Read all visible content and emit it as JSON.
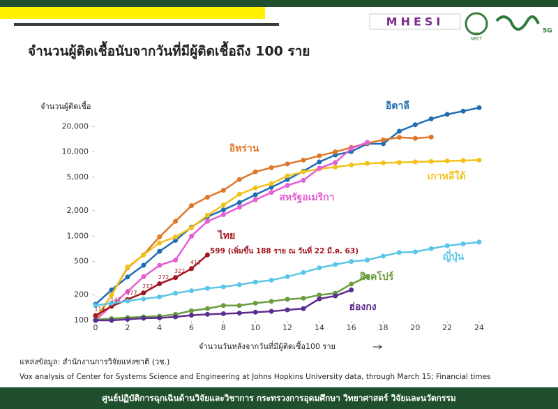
{
  "header": {
    "logo_text": "MHESI",
    "logo2_text": "วช.",
    "logo2_sub": "NRCT",
    "logo3_sub": "5G"
  },
  "chart_data": {
    "type": "line",
    "title": "จำนวนผู้ติดเชื้อนับจากวันที่มีผู้ติดเชื้อถึง 100 ราย",
    "y_label": "จำนวนผู้ติดเชื้อ",
    "x_label": "จำนวนวันหลังจากวันที่มีผู้ติดเชื้อ100 ราย",
    "log_y": true,
    "grid": false,
    "x": [
      0,
      1,
      2,
      3,
      4,
      5,
      6,
      7,
      8,
      9,
      10,
      11,
      12,
      13,
      14,
      15,
      16,
      17,
      18,
      19,
      20,
      21,
      22,
      23,
      24
    ],
    "xlim": [
      0,
      24
    ],
    "xticks": [
      0,
      2,
      4,
      6,
      8,
      10,
      12,
      14,
      16,
      18,
      20,
      22,
      24
    ],
    "ylim": [
      100,
      40000
    ],
    "yticks": [
      100,
      200,
      500,
      {
        "value": 1000,
        "label": "1,000"
      },
      {
        "value": 2000,
        "label": "2,000"
      },
      {
        "value": 5000,
        "label": "5,000"
      },
      {
        "value": 10000,
        "label": "10,000"
      },
      {
        "value": 20000,
        "label": "20,000"
      }
    ],
    "series": [
      {
        "name": "อิตาลี",
        "color": "#1f6db3",
        "values": [
          155,
          230,
          327,
          450,
          660,
          890,
          1280,
          1700,
          2050,
          2500,
          3100,
          3800,
          4700,
          5900,
          7600,
          9200,
          10100,
          12500,
          12500,
          17600,
          21000,
          24700,
          27900,
          30500,
          33500
        ]
      },
      {
        "name": "อิหร่าน",
        "color": "#e0782a",
        "values": [
          100,
          200,
          420,
          600,
          980,
          1500,
          2300,
          2900,
          3500,
          4700,
          5800,
          6500,
          7200,
          8000,
          9000,
          10000,
          11300,
          12700,
          13900,
          14900,
          14500,
          15000,
          null,
          null,
          null
        ]
      },
      {
        "name": "เกาหลีใต้",
        "color": "#f2c21b",
        "values": [
          104,
          200,
          430,
          600,
          830,
          980,
          1260,
          1770,
          2340,
          3150,
          3740,
          4200,
          5200,
          5800,
          6300,
          6600,
          7000,
          7300,
          7400,
          7500,
          7600,
          7700,
          7800,
          7900,
          8000
        ]
      },
      {
        "name": "สหรัฐอเมริกา",
        "color": "#e35fd3",
        "values": [
          100,
          150,
          220,
          330,
          450,
          520,
          1000,
          1500,
          1800,
          2200,
          2700,
          3300,
          4000,
          4600,
          6400,
          7500,
          11000,
          13000,
          null,
          null,
          null,
          null,
          null,
          null,
          null
        ]
      },
      {
        "name": "ไทย",
        "color": "#a3151f",
        "values": [
          114,
          147,
          177,
          212,
          272,
          322,
          411,
          599,
          null,
          null,
          null,
          null,
          null,
          null,
          null,
          null,
          null,
          null,
          null,
          null,
          null,
          null,
          null,
          null,
          null
        ]
      },
      {
        "name": "ญี่ปุ่น",
        "color": "#5cc6e6",
        "values": [
          150,
          160,
          170,
          180,
          190,
          210,
          225,
          240,
          250,
          265,
          285,
          300,
          330,
          370,
          420,
          460,
          500,
          520,
          580,
          640,
          650,
          710,
          770,
          810,
          850
        ]
      },
      {
        "name": "สิงคโปร์",
        "color": "#6a9e3f",
        "values": [
          102,
          105,
          108,
          110,
          112,
          118,
          130,
          138,
          150,
          150,
          160,
          168,
          178,
          183,
          200,
          210,
          270,
          330,
          null,
          null,
          null,
          null,
          null,
          null,
          null
        ]
      },
      {
        "name": "ฮ่องกง",
        "color": "#5b2d8e",
        "values": [
          100,
          100,
          103,
          106,
          107,
          110,
          115,
          118,
          120,
          122,
          125,
          128,
          133,
          138,
          180,
          195,
          230,
          null,
          null,
          null,
          null,
          null,
          null,
          null,
          null
        ]
      }
    ],
    "annotation": "599 (เพิ่มขึ้น 188  ราย ณ วันที่ 22 มี.ค. 63)",
    "source": "แหล่งข้อมูล: สำนักงานการวิจัยแห่งชาติ (วช.)",
    "source2": "Vox analysis of Center for Systems Science and Engineering at Johns Hopkins University data, through March 15; Financial times"
  },
  "footer": "ศูนย์ปฏิบัติการฉุกเฉินด้านวิจัยและวิชาการ กระทรวงการอุดมศึกษา วิทยาศาสตร์ วิจัยและนวัตกรรม"
}
